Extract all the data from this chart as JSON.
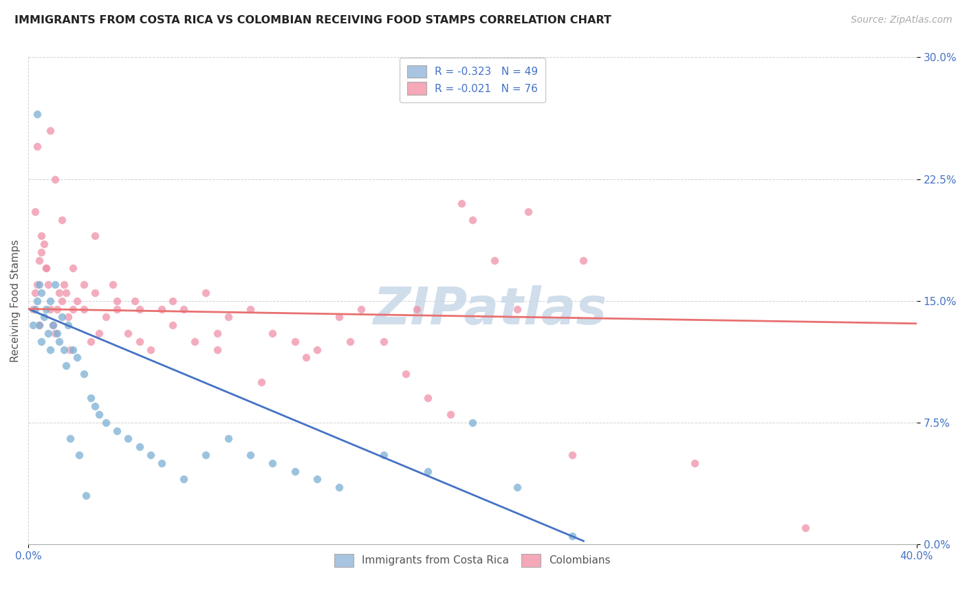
{
  "title": "IMMIGRANTS FROM COSTA RICA VS COLOMBIAN RECEIVING FOOD STAMPS CORRELATION CHART",
  "source": "Source: ZipAtlas.com",
  "ylabel": "Receiving Food Stamps",
  "ytick_vals": [
    0.0,
    7.5,
    15.0,
    22.5,
    30.0
  ],
  "xlim": [
    0.0,
    40.0
  ],
  "ylim": [
    0.0,
    30.0
  ],
  "legend_label1": "R = -0.323   N = 49",
  "legend_label2": "R = -0.021   N = 76",
  "legend_color1": "#a8c4e0",
  "legend_color2": "#f4a8b8",
  "scatter_color1": "#7bafd4",
  "scatter_color2": "#f090a8",
  "line_color1": "#4472c4",
  "line_color2": "#e87070",
  "watermark": "ZIPatlas",
  "watermark_color": "#c8d8e8",
  "footer_label1": "Immigrants from Costa Rica",
  "footer_label2": "Colombians",
  "costa_rica_x": [
    0.2,
    0.3,
    0.4,
    0.5,
    0.5,
    0.6,
    0.6,
    0.7,
    0.8,
    0.9,
    1.0,
    1.0,
    1.1,
    1.2,
    1.3,
    1.4,
    1.5,
    1.6,
    1.7,
    1.8,
    2.0,
    2.2,
    2.5,
    2.8,
    3.0,
    3.5,
    4.0,
    4.5,
    5.0,
    5.5,
    6.0,
    7.0,
    8.0,
    9.0,
    10.0,
    11.0,
    12.0,
    13.0,
    14.0,
    16.0,
    18.0,
    20.0,
    22.0,
    3.2,
    1.9,
    2.3,
    2.6,
    0.4,
    24.5
  ],
  "costa_rica_y": [
    13.5,
    14.5,
    15.0,
    16.0,
    13.5,
    15.5,
    12.5,
    14.0,
    14.5,
    13.0,
    15.0,
    12.0,
    13.5,
    16.0,
    13.0,
    12.5,
    14.0,
    12.0,
    11.0,
    13.5,
    12.0,
    11.5,
    10.5,
    9.0,
    8.5,
    7.5,
    7.0,
    6.5,
    6.0,
    5.5,
    5.0,
    4.0,
    5.5,
    6.5,
    5.5,
    5.0,
    4.5,
    4.0,
    3.5,
    5.5,
    4.5,
    7.5,
    3.5,
    8.0,
    6.5,
    5.5,
    3.0,
    26.5,
    0.5
  ],
  "colombian_x": [
    0.2,
    0.3,
    0.4,
    0.5,
    0.5,
    0.6,
    0.7,
    0.8,
    0.9,
    1.0,
    1.1,
    1.2,
    1.3,
    1.4,
    1.5,
    1.6,
    1.7,
    1.8,
    2.0,
    2.2,
    2.5,
    2.8,
    3.0,
    3.2,
    3.5,
    4.0,
    4.5,
    5.0,
    5.5,
    6.0,
    6.5,
    7.0,
    7.5,
    8.0,
    8.5,
    9.0,
    10.0,
    11.0,
    12.0,
    13.0,
    14.0,
    15.0,
    16.0,
    17.0,
    18.0,
    19.0,
    20.0,
    21.0,
    22.0,
    25.0,
    0.3,
    0.6,
    1.0,
    1.5,
    2.0,
    2.5,
    3.0,
    4.0,
    5.0,
    6.5,
    8.5,
    10.5,
    12.5,
    14.5,
    17.5,
    22.5,
    24.5,
    30.0,
    35.0,
    19.5,
    0.4,
    1.2,
    3.8,
    4.8,
    0.8,
    1.9
  ],
  "colombian_y": [
    14.5,
    15.5,
    16.0,
    17.5,
    13.5,
    19.0,
    18.5,
    17.0,
    16.0,
    14.5,
    13.5,
    13.0,
    14.5,
    15.5,
    15.0,
    16.0,
    15.5,
    14.0,
    14.5,
    15.0,
    14.5,
    12.5,
    15.5,
    13.0,
    14.0,
    14.5,
    13.0,
    12.5,
    12.0,
    14.5,
    15.0,
    14.5,
    12.5,
    15.5,
    13.0,
    14.0,
    14.5,
    13.0,
    12.5,
    12.0,
    14.0,
    14.5,
    12.5,
    10.5,
    9.0,
    8.0,
    20.0,
    17.5,
    14.5,
    17.5,
    20.5,
    18.0,
    25.5,
    20.0,
    17.0,
    16.0,
    19.0,
    15.0,
    14.5,
    13.5,
    12.0,
    10.0,
    11.5,
    12.5,
    14.5,
    20.5,
    5.5,
    5.0,
    1.0,
    21.0,
    24.5,
    22.5,
    16.0,
    15.0,
    17.0,
    12.0
  ]
}
